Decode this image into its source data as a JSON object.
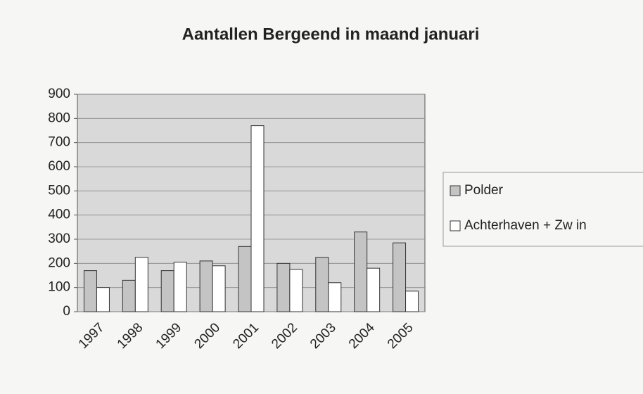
{
  "chart_data": {
    "type": "bar",
    "title": "Aantallen Bergeend in maand januari",
    "categories": [
      "1997",
      "1998",
      "1999",
      "2000",
      "2001",
      "2002",
      "2003",
      "2004",
      "2005"
    ],
    "series": [
      {
        "name": "Polder",
        "color": "#c4c4c4",
        "values": [
          170,
          130,
          170,
          210,
          270,
          200,
          225,
          330,
          285
        ]
      },
      {
        "name": "Achterhaven + Zw in",
        "color": "#ffffff",
        "values": [
          100,
          225,
          205,
          190,
          770,
          175,
          120,
          180,
          85
        ]
      }
    ],
    "ylim": [
      0,
      900
    ],
    "yticks": [
      0,
      100,
      200,
      300,
      400,
      500,
      600,
      700,
      800,
      900
    ],
    "grid": true,
    "legend": "right"
  }
}
